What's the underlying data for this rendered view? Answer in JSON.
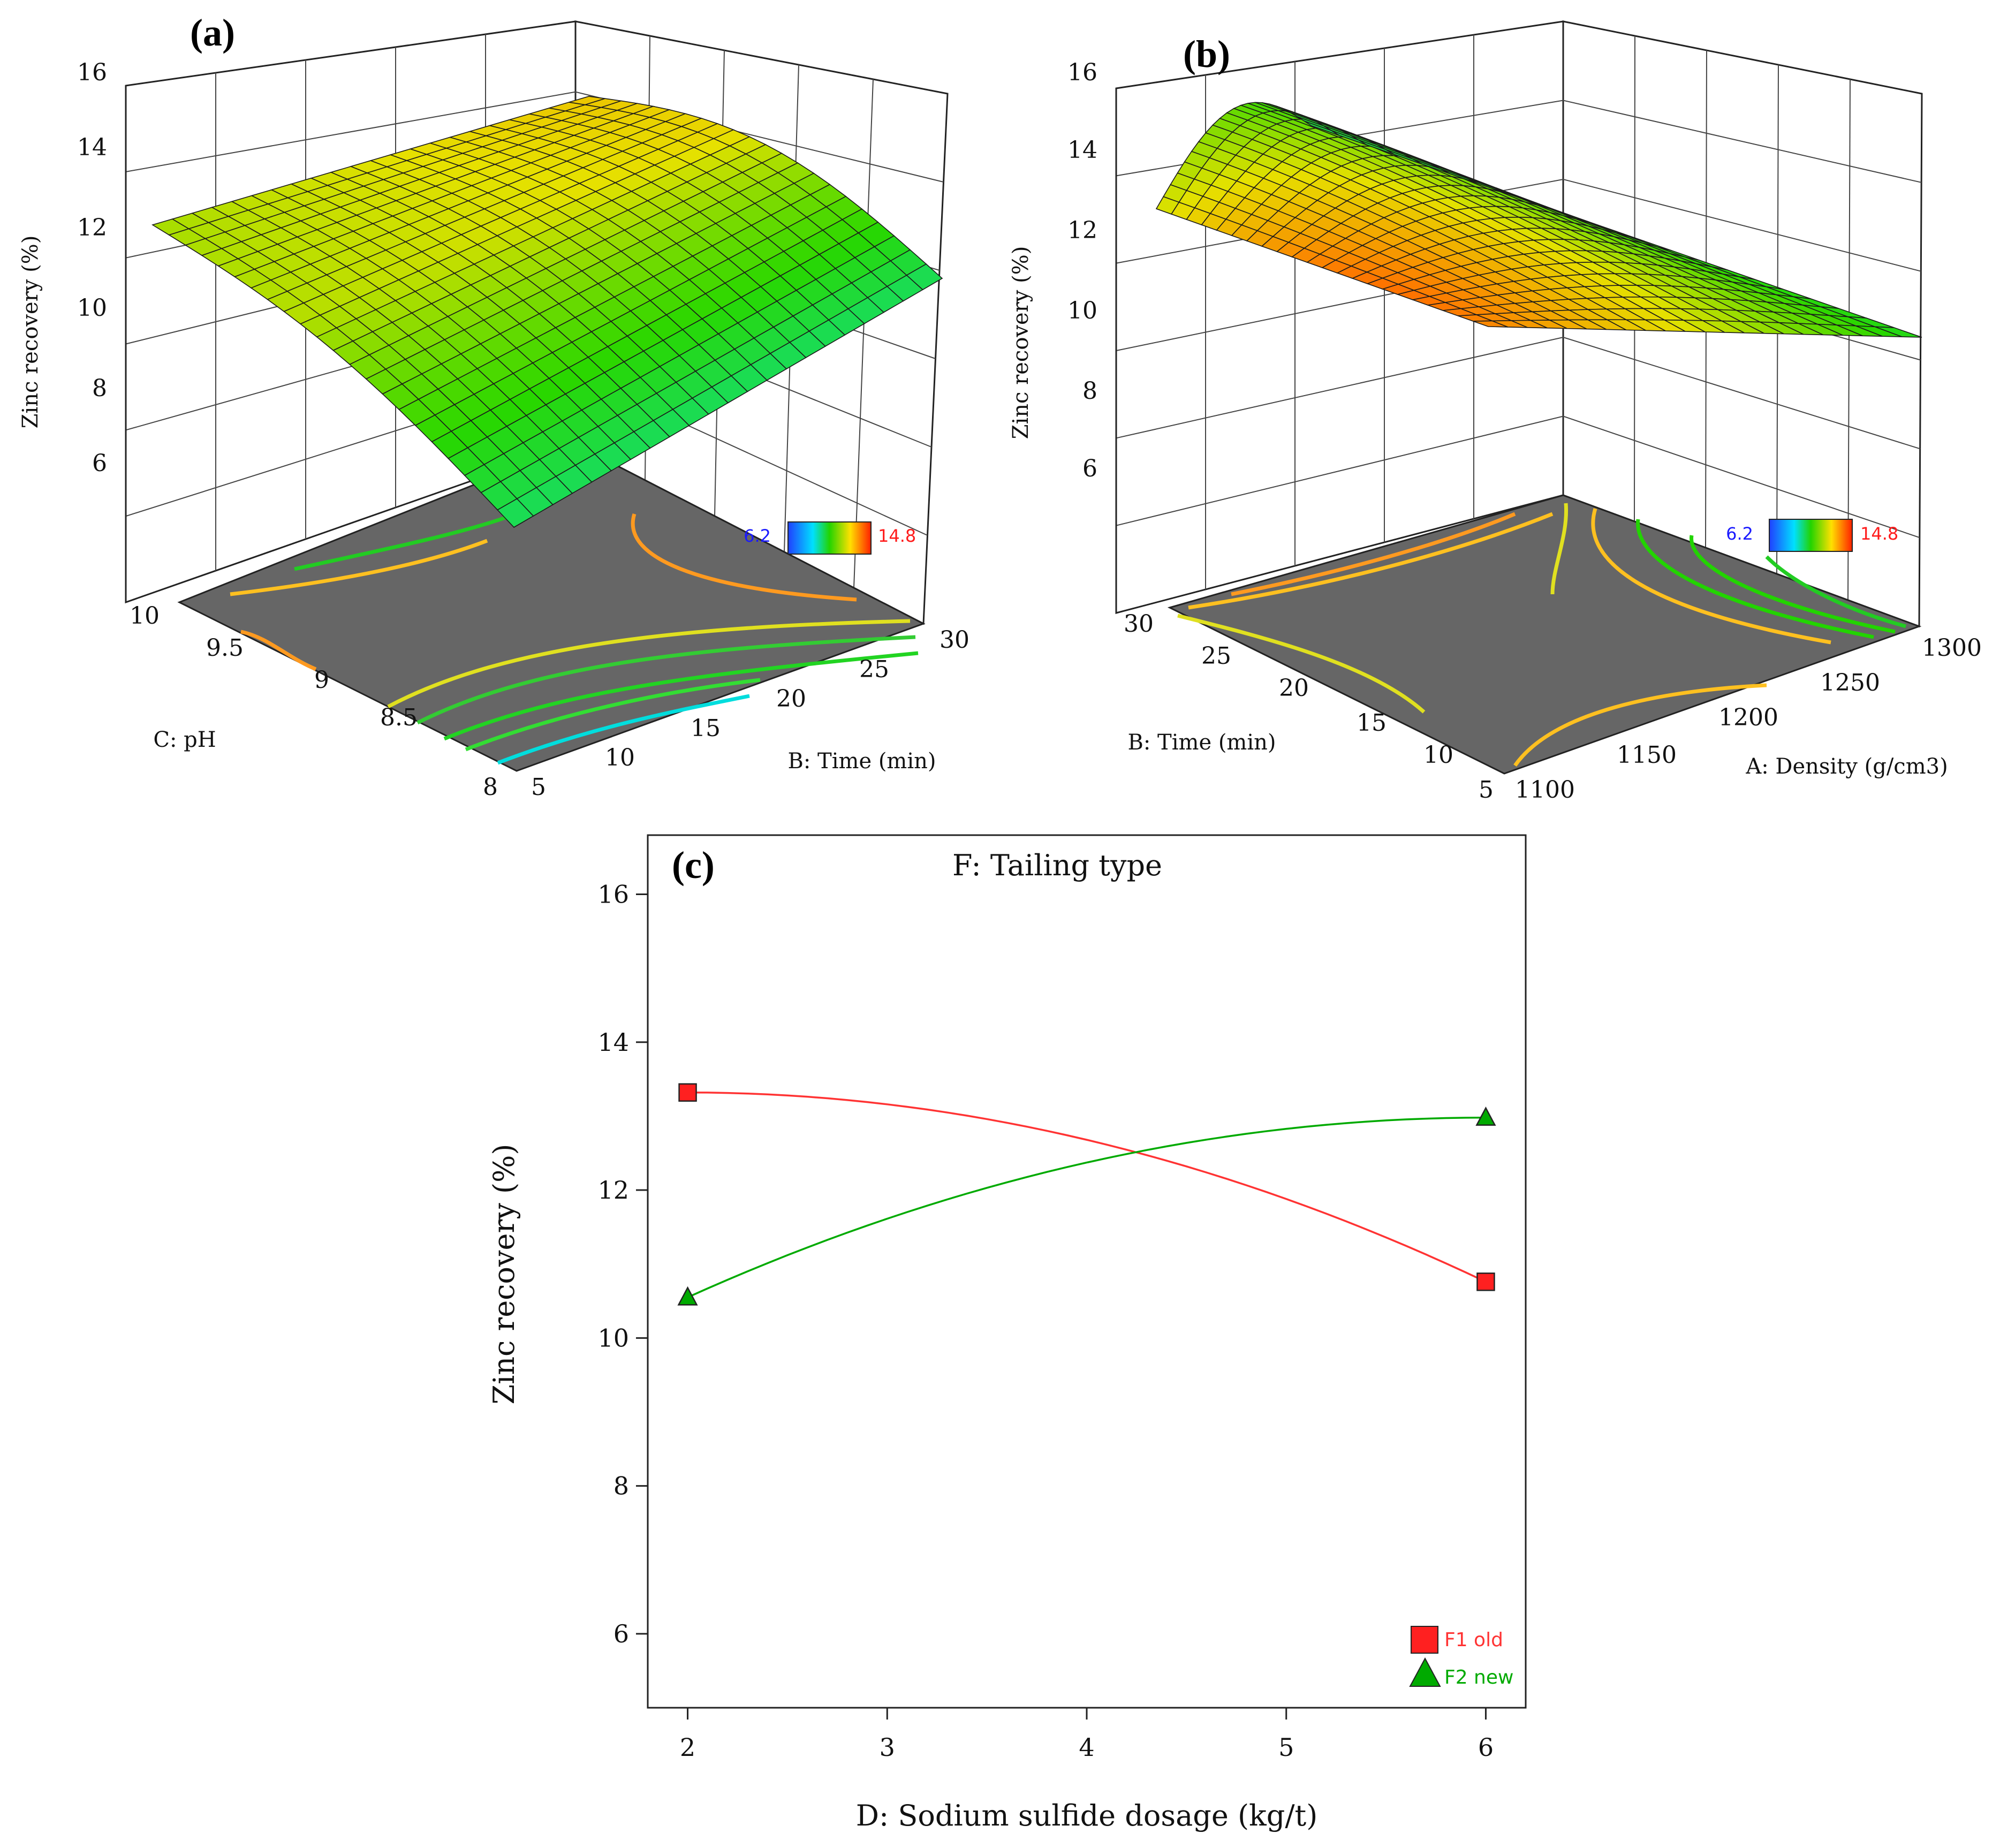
{
  "colors": {
    "surface_low": "#00e5ff",
    "surface_mid": "#22d400",
    "surface_high": "#ff6a00",
    "floor": "#666666",
    "legend_low": "#1a1aff",
    "legend_high": "#ff1a1a"
  },
  "panel_a": {
    "label": "(a)",
    "ylabel": "Zinc recovery (%)",
    "z_ticks": [
      "6",
      "8",
      "10",
      "12",
      "14",
      "16"
    ],
    "left_axis_label": "C: pH",
    "left_ticks": [
      "10",
      "9.5",
      "9",
      "8.5",
      "8"
    ],
    "right_axis_label": "B: Time (min)",
    "right_ticks": [
      "5",
      "10",
      "15",
      "20",
      "25",
      "30"
    ],
    "colorbar_min": "6.2",
    "colorbar_max": "14.8"
  },
  "panel_b": {
    "label": "(b)",
    "ylabel": "Zinc recovery (%)",
    "z_ticks": [
      "6",
      "8",
      "10",
      "12",
      "14",
      "16"
    ],
    "left_axis_label": "B: Time (min)",
    "left_ticks": [
      "30",
      "25",
      "20",
      "15",
      "10",
      "5"
    ],
    "right_axis_label": "A: Density (g/cm3)",
    "right_ticks": [
      "1100",
      "1150",
      "1200",
      "1250",
      "1300"
    ],
    "colorbar_min": "6.2",
    "colorbar_max": "14.8"
  },
  "chart_data": {
    "type": "line",
    "label": "(c)",
    "title": "F: Tailing type",
    "xlabel": "D: Sodium sulfide dosage (kg/t)",
    "ylabel": "Zinc recovery (%)",
    "x_ticks": [
      "2",
      "3",
      "4",
      "5",
      "6"
    ],
    "y_ticks": [
      "6",
      "8",
      "10",
      "12",
      "14",
      "16"
    ],
    "xlim": [
      1.8,
      6.2
    ],
    "ylim": [
      5,
      16.8
    ],
    "series": [
      {
        "name": "F1 old",
        "x": [
          2,
          6
        ],
        "y": [
          13.32,
          10.76
        ],
        "color": "#ff3333",
        "marker": "square"
      },
      {
        "name": "F2 new",
        "x": [
          2,
          6
        ],
        "y": [
          10.55,
          12.98
        ],
        "color": "#00aa00",
        "marker": "triangle"
      }
    ]
  }
}
